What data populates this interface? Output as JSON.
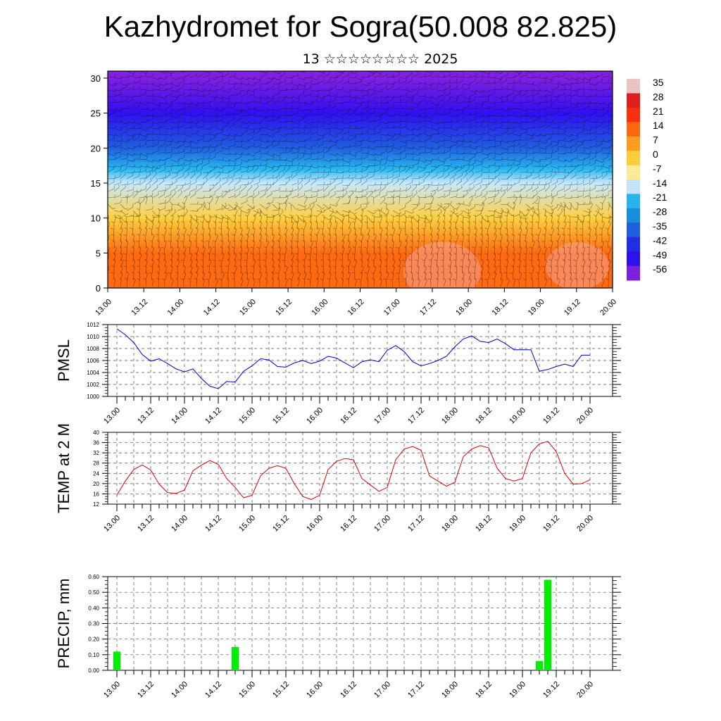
{
  "title": "Kazhydromet for Sogra(50.008 82.825)",
  "subtitle": "13 ☆☆☆☆☆☆☆☆ 2025",
  "time_labels": [
    "13.00",
    "13.12",
    "14.00",
    "14.12",
    "15.00",
    "15.12",
    "16.00",
    "16.12",
    "17.00",
    "17.12",
    "18.00",
    "18.12",
    "19.00",
    "19.12",
    "20.00"
  ],
  "chart_data": [
    {
      "type": "heatmap",
      "title": "",
      "xlabel": "",
      "ylabel": "",
      "x_ticks": [
        "13.00",
        "13.12",
        "14.00",
        "14.12",
        "15.00",
        "15.12",
        "16.00",
        "16.12",
        "17.00",
        "17.12",
        "18.00",
        "18.12",
        "19.00",
        "19.12",
        "20.00"
      ],
      "y_ticks": [
        0,
        5,
        10,
        15,
        20,
        25,
        30
      ],
      "ylim": [
        0,
        31
      ],
      "colorbar_labels": [
        "35",
        "28",
        "21",
        "14",
        "7",
        "0",
        "-7",
        "-14",
        "-21",
        "-28",
        "-35",
        "-42",
        "-49",
        "-56"
      ],
      "colorbar_colors": [
        "#f0c8c8",
        "#e02020",
        "#ff3010",
        "#ff6a10",
        "#ffa020",
        "#ffd040",
        "#fff098",
        "#c8e8ff",
        "#28b8f0",
        "#1890e0",
        "#2060e0",
        "#2030e8",
        "#3010f0",
        "#8020e0"
      ],
      "profile": [
        {
          "level": 0,
          "value": 18
        },
        {
          "level": 5,
          "value": 14
        },
        {
          "level": 10,
          "value": 3
        },
        {
          "level": 15,
          "value": -8
        },
        {
          "level": 17,
          "value": -15
        },
        {
          "level": 20,
          "value": -30
        },
        {
          "level": 25,
          "value": -48
        },
        {
          "level": 30,
          "value": -55
        }
      ]
    },
    {
      "type": "line",
      "ylabel": "PMSL",
      "ylim": [
        1000,
        1012
      ],
      "y_ticks": [
        1000,
        1002,
        1004,
        1006,
        1008,
        1010,
        1012
      ],
      "x_ticks": [
        "13.00",
        "13.12",
        "14.00",
        "14.12",
        "15.00",
        "15.12",
        "16.00",
        "16.12",
        "17.00",
        "17.12",
        "18.00",
        "18.12",
        "19.00",
        "19.12",
        "20.00"
      ],
      "color": "#0000cc",
      "x": [
        0,
        3,
        6,
        9,
        12,
        15,
        18,
        21,
        24,
        27,
        30,
        33,
        36,
        39,
        42,
        45,
        48,
        51,
        54,
        57,
        60,
        63,
        66,
        69,
        72,
        75,
        78,
        81,
        84,
        87,
        90,
        93,
        96,
        99,
        102,
        105,
        108,
        111,
        114,
        117,
        120,
        123,
        126,
        129,
        132,
        135,
        138,
        141,
        144,
        147,
        150,
        153,
        156,
        159,
        162,
        165,
        168
      ],
      "values": [
        1011.3,
        1010.3,
        1009.0,
        1007.0,
        1005.9,
        1006.3,
        1005.5,
        1004.6,
        1004.1,
        1004.6,
        1003.0,
        1001.7,
        1001.3,
        1002.5,
        1002.4,
        1004.2,
        1005.1,
        1006.3,
        1006.1,
        1005.0,
        1004.9,
        1005.6,
        1006.0,
        1005.5,
        1005.9,
        1006.7,
        1006.4,
        1005.6,
        1004.8,
        1005.8,
        1006.1,
        1005.8,
        1007.7,
        1008.5,
        1007.5,
        1005.8,
        1005.1,
        1005.5,
        1006.0,
        1006.7,
        1008.3,
        1009.6,
        1010.1,
        1009.2,
        1009.0,
        1009.6,
        1008.8,
        1007.8,
        1007.8,
        1007.8,
        1004.2,
        1004.5,
        1005.0,
        1005.4,
        1005.0,
        1006.9,
        1006.9
      ]
    },
    {
      "type": "line",
      "ylabel": "TEMP at 2 M",
      "ylim": [
        12,
        40
      ],
      "y_ticks": [
        12,
        16,
        20,
        24,
        28,
        32,
        36,
        40
      ],
      "x_ticks": [
        "13.00",
        "13.12",
        "14.00",
        "14.12",
        "15.00",
        "15.12",
        "16.00",
        "16.12",
        "17.00",
        "17.12",
        "18.00",
        "18.12",
        "19.00",
        "19.12",
        "20.00"
      ],
      "color": "#dd0000",
      "x": [
        0,
        3,
        6,
        9,
        12,
        15,
        18,
        21,
        24,
        27,
        30,
        33,
        36,
        39,
        42,
        45,
        48,
        51,
        54,
        57,
        60,
        63,
        66,
        69,
        72,
        75,
        78,
        81,
        84,
        87,
        90,
        93,
        96,
        99,
        102,
        105,
        108,
        111,
        114,
        117,
        120,
        123,
        126,
        129,
        132,
        135,
        138,
        141,
        144,
        147,
        150,
        153,
        156,
        159,
        162,
        165,
        168
      ],
      "values": [
        15.5,
        21.0,
        25.5,
        27.3,
        25.3,
        19.8,
        16.5,
        16.2,
        17.5,
        25.0,
        27.2,
        29.0,
        27.5,
        22.0,
        18.5,
        14.5,
        15.5,
        23.0,
        26.0,
        27.0,
        26.0,
        20.0,
        15.0,
        13.8,
        15.5,
        25.5,
        28.7,
        29.8,
        29.3,
        22.0,
        19.5,
        17.0,
        18.5,
        29.3,
        33.5,
        34.5,
        33.0,
        23.0,
        21.0,
        19.0,
        20.5,
        30.5,
        33.5,
        34.8,
        34.0,
        26.0,
        22.0,
        21.0,
        22.0,
        32.0,
        35.5,
        36.5,
        32.5,
        24.0,
        19.8,
        20.0,
        21.5
      ]
    },
    {
      "type": "bar",
      "ylabel": "PRECIP, mm",
      "ylim": [
        0,
        0.6
      ],
      "y_ticks": [
        "0.00",
        "0.10",
        "0.20",
        "0.30",
        "0.40",
        "0.50",
        "0.60"
      ],
      "x_ticks": [
        "13.00",
        "13.12",
        "14.00",
        "14.12",
        "15.00",
        "15.12",
        "16.00",
        "16.12",
        "17.00",
        "17.12",
        "18.00",
        "18.12",
        "19.00",
        "19.12",
        "20.00"
      ],
      "color": "#00ee00",
      "bars": [
        {
          "x": 0,
          "value": 0.12
        },
        {
          "x": 42,
          "value": 0.15
        },
        {
          "x": 150,
          "value": 0.06
        },
        {
          "x": 153,
          "value": 0.58
        }
      ]
    }
  ]
}
